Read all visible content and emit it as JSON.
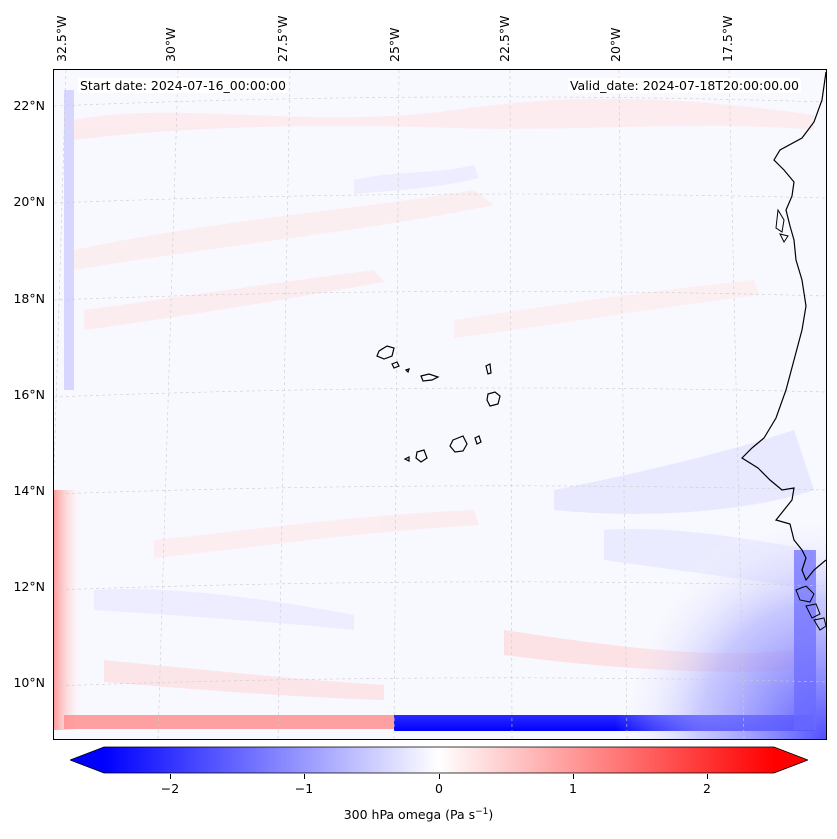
{
  "header": {
    "start_date": "Start date: 2024-07-16_00:00:00",
    "valid_date": "Valid_date: 2024-07-18T20:00:00.00"
  },
  "longitude_labels": [
    "32.5°W",
    "30°W",
    "27.5°W",
    "25°W",
    "22.5°W",
    "20°W",
    "17.5°W"
  ],
  "latitude_labels": [
    "22°N",
    "20°N",
    "18°N",
    "16°N",
    "14°N",
    "12°N",
    "10°N"
  ],
  "colorbar": {
    "label_prefix": "300 hPa omega (Pa s",
    "label_exp": "−1",
    "label_suffix": ")",
    "ticks": [
      "−2",
      "−1",
      "0",
      "1",
      "2"
    ],
    "range": [
      -2.7,
      2.7
    ],
    "extend": "both",
    "colormap": "bwr",
    "low_color": "#0000ff",
    "mid_color": "#ffffff",
    "high_color": "#ff0000"
  },
  "map": {
    "features": [
      "coastline",
      "cape-verde-islands",
      "west-african-coast",
      "gridlines"
    ],
    "ocean_color": "#f8f8ff",
    "coastline_color": "#000000",
    "gridline_color": "#cccccc"
  }
}
